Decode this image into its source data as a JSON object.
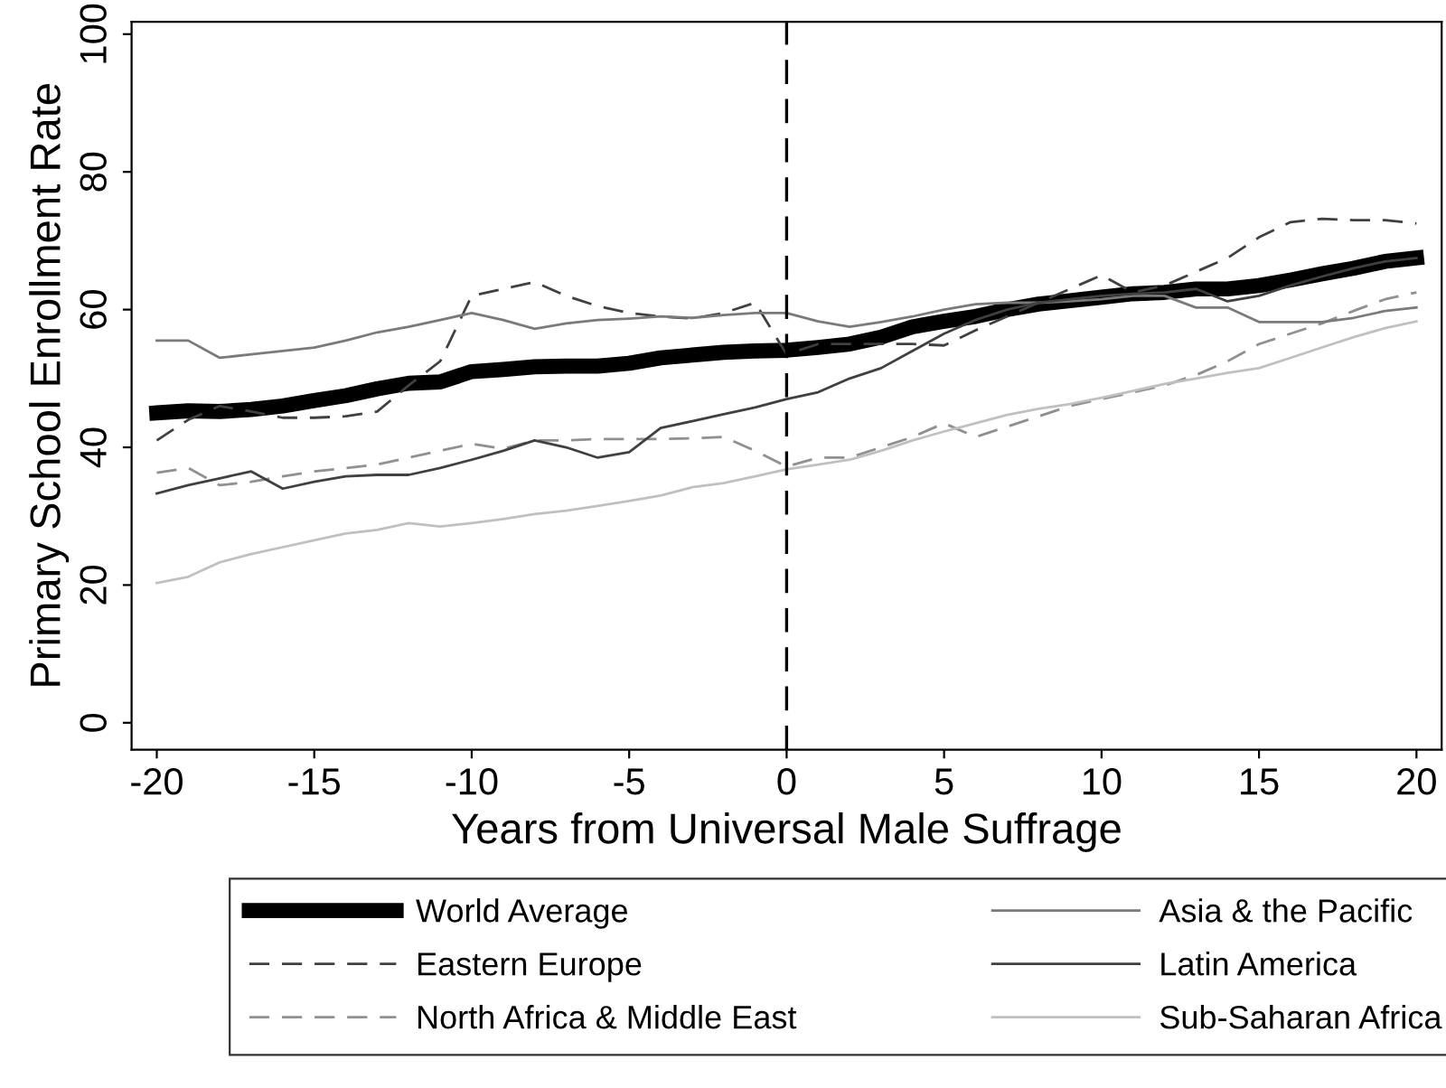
{
  "chart_data": {
    "type": "line",
    "xlabel": "Years from Universal Male Suffrage",
    "ylabel": "Primary School Enrollment Rate",
    "x": [
      -20,
      -19,
      -18,
      -17,
      -16,
      -15,
      -14,
      -13,
      -12,
      -11,
      -10,
      -9,
      -8,
      -7,
      -6,
      -5,
      -4,
      -3,
      -2,
      -1,
      0,
      1,
      2,
      3,
      4,
      5,
      6,
      7,
      8,
      9,
      10,
      11,
      12,
      13,
      14,
      15,
      16,
      17,
      18,
      19,
      20
    ],
    "series": [
      {
        "name": "World Average",
        "color": "#000000",
        "line_style": "solid",
        "values": [
          45,
          45.3,
          45.2,
          45.5,
          46,
          46.8,
          47.5,
          48.5,
          49.3,
          49.5,
          51,
          51.3,
          51.7,
          51.8,
          51.8,
          52.2,
          53,
          53.4,
          53.8,
          54,
          54.1,
          54.5,
          55,
          56,
          57.5,
          58.3,
          59,
          60,
          60.8,
          61.3,
          61.8,
          62.3,
          62.5,
          63,
          63,
          63.5,
          64.3,
          65.2,
          66,
          67,
          67.5
        ]
      },
      {
        "name": "Eastern Europe",
        "color": "#404040",
        "line_style": "dashed",
        "values": [
          41,
          44,
          46,
          45.2,
          44.3,
          44.3,
          44.5,
          45.2,
          49,
          52.5,
          62,
          63,
          64,
          62,
          60.5,
          59.5,
          59,
          58.7,
          59.5,
          61,
          53.5,
          55,
          55,
          55,
          55,
          54.8,
          57,
          59,
          61,
          63,
          65,
          62.5,
          63.5,
          65.5,
          67.5,
          70.5,
          72.7,
          73.2,
          73,
          73,
          72.5
        ]
      },
      {
        "name": "North Africa & Middle East",
        "color": "#909090",
        "line_style": "dashed",
        "values": [
          36.3,
          37,
          34.5,
          35,
          35.8,
          36.5,
          37,
          37.5,
          38.5,
          39.5,
          40.5,
          39.8,
          41,
          41,
          41.2,
          41.2,
          41.2,
          41.3,
          41.5,
          39.5,
          37.2,
          38.5,
          38.5,
          40,
          41.5,
          43.5,
          41.5,
          43,
          44.5,
          46,
          47,
          48,
          49,
          50.5,
          52.5,
          55,
          56.5,
          58,
          59.8,
          61.5,
          62.5
        ]
      },
      {
        "name": "Asia & the Pacific",
        "color": "#7a7a7a",
        "line_style": "solid",
        "values": [
          55.5,
          55.5,
          53,
          53.5,
          54,
          54.5,
          55.5,
          56.7,
          57.5,
          58.5,
          59.5,
          58.5,
          57.2,
          58,
          58.5,
          58.7,
          59,
          58.8,
          59.2,
          59.5,
          59.5,
          58.3,
          57.5,
          58.2,
          59,
          60,
          60.8,
          61,
          61,
          61.2,
          61.5,
          62,
          62,
          60.3,
          60.3,
          58.2,
          58.2,
          58.2,
          58.8,
          59.8,
          60.3
        ]
      },
      {
        "name": "Latin America",
        "color": "#404040",
        "line_style": "solid",
        "values": [
          33.3,
          34.5,
          35.5,
          36.5,
          34,
          35,
          35.8,
          36,
          36,
          37,
          38.2,
          39.5,
          41,
          40,
          38.5,
          39.3,
          42.8,
          43.8,
          44.8,
          45.8,
          47,
          48,
          50,
          51.5,
          54,
          56.5,
          58.5,
          60,
          61,
          61.5,
          62,
          62.3,
          62.5,
          63,
          61.2,
          62,
          63.5,
          64.8,
          66,
          67,
          67.5
        ]
      },
      {
        "name": "Sub-Saharan Africa",
        "color": "#c0c0c0",
        "line_style": "solid",
        "values": [
          20.3,
          21.2,
          23.3,
          24.5,
          25.5,
          26.5,
          27.5,
          28,
          29,
          28.5,
          29,
          29.6,
          30.3,
          30.8,
          31.5,
          32.2,
          33,
          34.2,
          34.8,
          35.8,
          36.8,
          37.5,
          38.2,
          39.5,
          41,
          42.3,
          43.5,
          44.7,
          45.6,
          46.3,
          47.2,
          48.2,
          49.2,
          50,
          50.8,
          51.5,
          53,
          54.5,
          56,
          57.3,
          58.3
        ]
      }
    ],
    "xlim": [
      -20.8,
      20.8
    ],
    "xticks": [
      -20,
      -15,
      -10,
      -5,
      0,
      5,
      10,
      15,
      20
    ],
    "ylim": [
      -3.9,
      101.8
    ],
    "yticks": [
      0,
      20,
      40,
      60,
      80,
      100
    ],
    "ref_lines": [
      {
        "axis": "x",
        "value": 0,
        "color": "#000000",
        "line_style": "dashed"
      }
    ],
    "grid": false,
    "legend": "bottom",
    "marker": "none"
  }
}
